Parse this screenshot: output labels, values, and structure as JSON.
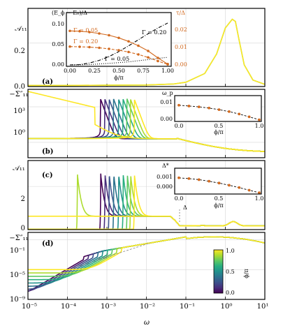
{
  "chart_data": [
    {
      "panel": "(a)",
      "type": "line",
      "ylabel": "𝒜₁₁",
      "yticks": [
        "0.0",
        "0.2"
      ],
      "ylim": [
        0,
        0.36
      ],
      "x_scale": "log",
      "xlim": [
        1e-05,
        10
      ],
      "grid": true,
      "series": [
        {
          "x": [
            1e-05,
            0.0001,
            0.001,
            0.01,
            0.05,
            0.1,
            0.3,
            0.6,
            1.0,
            1.5,
            1.8,
            2.2,
            3,
            5,
            10
          ],
          "y": [
            0.005,
            0.005,
            0.006,
            0.007,
            0.012,
            0.02,
            0.06,
            0.15,
            0.27,
            0.31,
            0.3,
            0.22,
            0.1,
            0.03,
            0.01
          ]
        }
      ]
    },
    {
      "panel": "inset-a",
      "type": "line",
      "left_label": "(E_ϕ − E₀)/Δ",
      "right_label": "τ/Δ",
      "xlabel": "ϕ/π",
      "xticks": [
        "0.00",
        "0.25",
        "0.50",
        "0.75",
        "1.00"
      ],
      "yticks_left": [
        "0.00",
        "0.05",
        "0.10"
      ],
      "yticks_right": [
        "0.00",
        "0.01",
        "0.02"
      ],
      "annotations": [
        "Γ = 0.05",
        "Γ = 0.20",
        "Γ = 0.20",
        "Γ = 0.05"
      ],
      "series": [
        {
          "axis": "left",
          "x": [
            0,
            0.1,
            0.2,
            0.3,
            0.4,
            0.5,
            0.6,
            0.7,
            0.8,
            0.9,
            1.0
          ],
          "y": [
            0,
            0.001,
            0.005,
            0.012,
            0.022,
            0.035,
            0.05,
            0.066,
            0.082,
            0.097,
            0.11
          ]
        },
        {
          "axis": "left",
          "x": [
            0,
            0.1,
            0.2,
            0.3,
            0.4,
            0.5,
            0.6,
            0.7,
            0.8,
            0.9,
            1.0
          ],
          "y": [
            0,
            0.0003,
            0.001,
            0.0025,
            0.004,
            0.006,
            0.008,
            0.011,
            0.014,
            0.017,
            0.02
          ]
        },
        {
          "axis": "right",
          "x": [
            0,
            0.1,
            0.2,
            0.3,
            0.4,
            0.5,
            0.6,
            0.7,
            0.8,
            0.9,
            1.0
          ],
          "y": [
            0.0195,
            0.0193,
            0.0188,
            0.018,
            0.017,
            0.0155,
            0.0135,
            0.011,
            0.008,
            0.004,
            0.0005
          ]
        },
        {
          "axis": "right",
          "x": [
            0,
            0.1,
            0.2,
            0.3,
            0.4,
            0.5,
            0.6,
            0.7,
            0.8,
            0.9,
            1.0
          ],
          "y": [
            0.0105,
            0.0104,
            0.0102,
            0.0098,
            0.0092,
            0.0084,
            0.0074,
            0.006,
            0.0043,
            0.0022,
            0.0003
          ]
        }
      ]
    },
    {
      "panel": "(b)",
      "type": "line",
      "ylabel": "−Σ″₁₁",
      "yticks": [
        "10⁰",
        "10³"
      ],
      "y_scale": "log",
      "ylim": [
        0.05,
        30000
      ],
      "x_scale": "log",
      "xlim": [
        1e-05,
        10
      ],
      "peaks_x": [
        0.0007,
        0.0009,
        0.00115,
        0.0015,
        0.002,
        0.0026,
        0.0033,
        0.004,
        0.005
      ],
      "base_y": 2.0
    },
    {
      "panel": "inset-b",
      "type": "scatter",
      "ylabel": "ω_p",
      "xlabel": "ϕ/π",
      "xticks": [
        "0.0",
        "0.5",
        "1.0"
      ],
      "yticks": [
        "0.00",
        "0.01"
      ],
      "x": [
        0,
        0.125,
        0.25,
        0.375,
        0.5,
        0.625,
        0.75,
        0.875,
        1.0
      ],
      "y": [
        0.0095,
        0.009,
        0.0085,
        0.0078,
        0.0068,
        0.0056,
        0.0041,
        0.0024,
        0.0006
      ]
    },
    {
      "panel": "(c)",
      "type": "line",
      "ylabel": "𝒜₁₁",
      "yticks": [
        "0",
        "2"
      ],
      "ylim": [
        0,
        3.2
      ],
      "x_scale": "log",
      "xlim": [
        1e-05,
        10
      ],
      "annotation": "Δ",
      "peaks_x": [
        0.0007,
        0.0009,
        0.00115,
        0.0015,
        0.002,
        0.0026,
        0.0033,
        0.004,
        0.005
      ]
    },
    {
      "panel": "inset-c",
      "type": "scatter",
      "ylabel": "Δ*",
      "xlabel": "ϕ/π",
      "xticks": [
        "0.0",
        "0.5",
        "1.0"
      ],
      "yticks": [
        "0.000",
        "0.001"
      ],
      "x": [
        0,
        0.125,
        0.25,
        0.375,
        0.5,
        0.625,
        0.75,
        0.875,
        1.0
      ],
      "y": [
        0.001,
        0.00095,
        0.00088,
        0.00078,
        0.00066,
        0.00052,
        0.00037,
        0.0002,
        4e-05
      ]
    },
    {
      "panel": "(d)",
      "type": "line",
      "ylabel": "−Σ″₁₁",
      "xlabel": "ω",
      "xticks": [
        "10⁻⁵",
        "10⁻⁴",
        "10⁻³",
        "10⁻²",
        "10⁻¹",
        "10⁰",
        "10¹"
      ],
      "yticks": [
        "10⁻⁹",
        "10⁻⁵",
        "10⁻¹"
      ],
      "y_scale": "log",
      "ylim": [
        1e-09,
        1
      ],
      "x_scale": "log",
      "xlim": [
        1e-05,
        10
      ],
      "annotation": "∝ ω²",
      "colorbar": {
        "label": "ϕ/π",
        "ticks": [
          "0.0",
          "0.5",
          "1.0"
        ],
        "colormap": "viridis"
      }
    }
  ],
  "colors": {
    "orange": "#d2691e",
    "viridis": [
      "#440154",
      "#472d7b",
      "#3b528b",
      "#2c728e",
      "#21918c",
      "#28ae80",
      "#5ec962",
      "#addc30",
      "#fde725"
    ]
  }
}
